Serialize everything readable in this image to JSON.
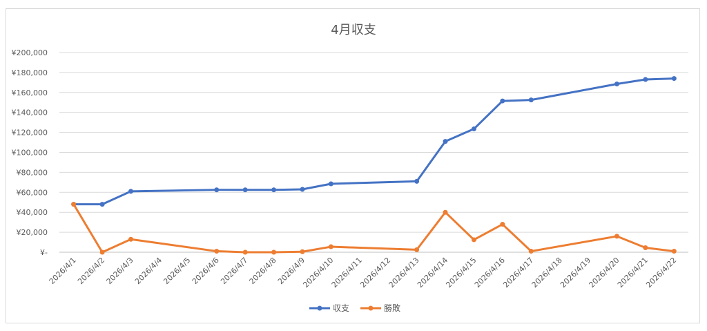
{
  "chart_data": {
    "type": "line",
    "title": "4月収支",
    "categories": [
      "2026/4/1",
      "2026/4/2",
      "2026/4/3",
      "2026/4/4",
      "2026/4/5",
      "2026/4/6",
      "2026/4/7",
      "2026/4/8",
      "2026/4/9",
      "2026/4/10",
      "2026/4/11",
      "2026/4/12",
      "2026/4/13",
      "2026/4/14",
      "2026/4/15",
      "2026/4/16",
      "2026/4/17",
      "2026/4/18",
      "2026/4/19",
      "2026/4/20",
      "2026/4/21",
      "2026/4/22"
    ],
    "y_tick_labels": [
      "¥-",
      "¥20,000",
      "¥40,000",
      "¥60,000",
      "¥80,000",
      "¥100,000",
      "¥120,000",
      "¥140,000",
      "¥160,000",
      "¥180,000",
      "¥200,000"
    ],
    "ylim": [
      0,
      200000
    ],
    "grid": true,
    "legend_position": "bottom",
    "series": [
      {
        "name": "収支",
        "color": "#4472c4",
        "points": [
          {
            "x": "2026/4/1",
            "y": 48000
          },
          {
            "x": "2026/4/2",
            "y": 48000
          },
          {
            "x": "2026/4/3",
            "y": 61000
          },
          {
            "x": "2026/4/6",
            "y": 62500
          },
          {
            "x": "2026/4/7",
            "y": 62500
          },
          {
            "x": "2026/4/8",
            "y": 62500
          },
          {
            "x": "2026/4/9",
            "y": 63000
          },
          {
            "x": "2026/4/10",
            "y": 68500
          },
          {
            "x": "2026/4/13",
            "y": 71000
          },
          {
            "x": "2026/4/14",
            "y": 111000
          },
          {
            "x": "2026/4/15",
            "y": 123500
          },
          {
            "x": "2026/4/16",
            "y": 151500
          },
          {
            "x": "2026/4/17",
            "y": 152500
          },
          {
            "x": "2026/4/20",
            "y": 168500
          },
          {
            "x": "2026/4/21",
            "y": 173000
          },
          {
            "x": "2026/4/22",
            "y": 174000
          }
        ]
      },
      {
        "name": "勝敗",
        "color": "#ed7d31",
        "points": [
          {
            "x": "2026/4/1",
            "y": 48000
          },
          {
            "x": "2026/4/2",
            "y": 0
          },
          {
            "x": "2026/4/3",
            "y": 13000
          },
          {
            "x": "2026/4/6",
            "y": 1000
          },
          {
            "x": "2026/4/7",
            "y": 0
          },
          {
            "x": "2026/4/8",
            "y": 0
          },
          {
            "x": "2026/4/9",
            "y": 500
          },
          {
            "x": "2026/4/10",
            "y": 5500
          },
          {
            "x": "2026/4/13",
            "y": 2500
          },
          {
            "x": "2026/4/14",
            "y": 40000
          },
          {
            "x": "2026/4/15",
            "y": 12500
          },
          {
            "x": "2026/4/16",
            "y": 28000
          },
          {
            "x": "2026/4/17",
            "y": 1000
          },
          {
            "x": "2026/4/20",
            "y": 16000
          },
          {
            "x": "2026/4/21",
            "y": 4500
          },
          {
            "x": "2026/4/22",
            "y": 1000
          }
        ]
      }
    ]
  }
}
